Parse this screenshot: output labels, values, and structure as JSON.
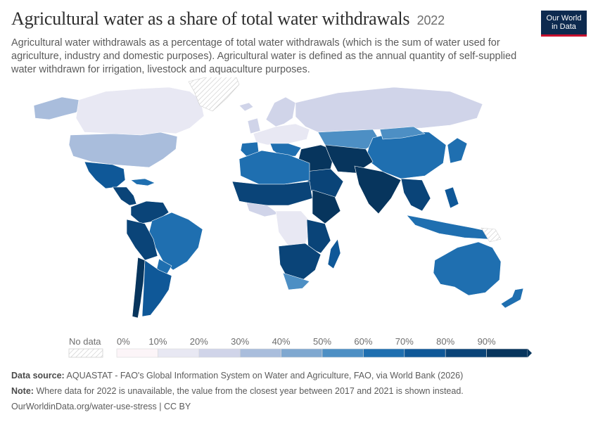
{
  "header": {
    "title": "Agricultural water as a share of total water withdrawals",
    "year": "2022",
    "subtitle": "Agricultural water withdrawals as a percentage of total water withdrawals (which is the sum of water used for agriculture, industry and domestic purposes). Agricultural water is defined as the annual quantity of self-supplied water withdrawn for irrigation, livestock and aquaculture purposes.",
    "logo_line1": "Our World",
    "logo_line2": "in Data"
  },
  "legend": {
    "no_data_label": "No data",
    "tick_labels": [
      "0%",
      "10%",
      "20%",
      "30%",
      "40%",
      "50%",
      "60%",
      "70%",
      "80%",
      "90%"
    ],
    "colors": [
      "#fcf5f8",
      "#e8e8f3",
      "#d0d4e9",
      "#a9bddc",
      "#7fa8d0",
      "#4d8fc4",
      "#1f6fb0",
      "#0f5898",
      "#0a4478",
      "#07355d"
    ]
  },
  "footer": {
    "source_label": "Data source:",
    "source_text": "AQUASTAT - FAO's Global Information System on Water and Agriculture, FAO, via World Bank (2026)",
    "note_label": "Note:",
    "note_text": "Where data for 2022 is unavailable, the value from the closest year between 2017 and 2021 is shown instead.",
    "url": "OurWorldinData.org/water-use-stress | CC BY"
  }
}
